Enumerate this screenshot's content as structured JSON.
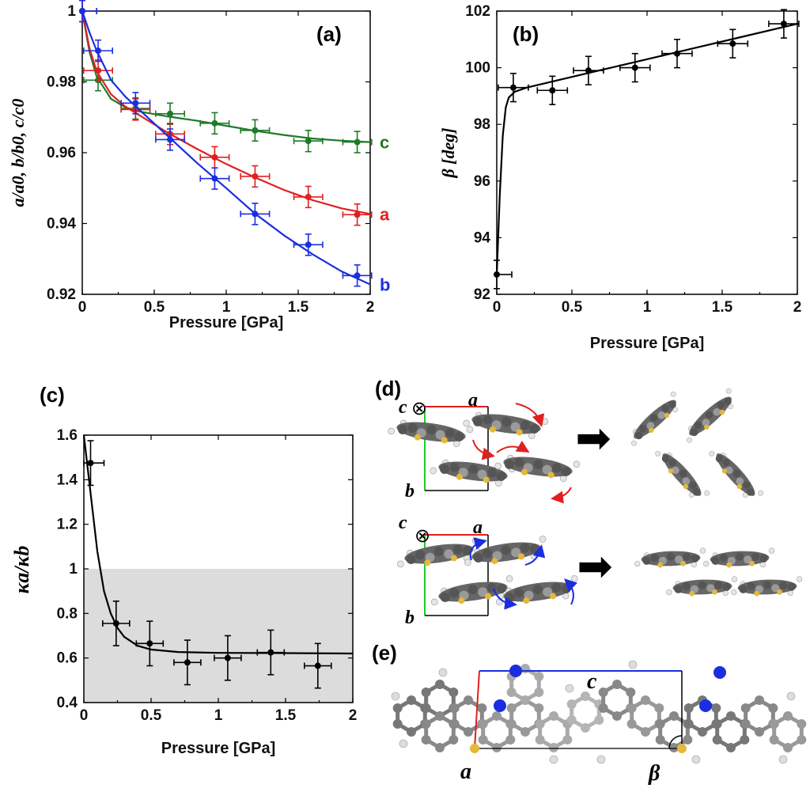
{
  "panels": {
    "a": "(a)",
    "b": "(b)",
    "c": "(c)",
    "d": "(d)",
    "e": "(e)"
  },
  "colors": {
    "a": "#e02020",
    "b": "#1a2ee0",
    "c": "#1f7a2a",
    "black": "#000000",
    "shade": "#dcdcdc"
  },
  "chart_data": [
    {
      "id": "a",
      "type": "line",
      "title": "(a)",
      "xlabel": "Pressure [GPa]",
      "ylabel": "a/a0, b/b0, c/c0",
      "xlim": [
        0,
        2
      ],
      "ylim": [
        0.92,
        1.0
      ],
      "xticks": [
        0,
        0.5,
        1,
        1.5,
        2
      ],
      "xtick_labels": [
        "0",
        "0.5",
        "1",
        "1.5",
        "2"
      ],
      "yticks": [
        0.92,
        0.94,
        0.96,
        0.98,
        1.0
      ],
      "ytick_labels": [
        "0.92",
        "0.94",
        "0.96",
        "0.98",
        "1"
      ],
      "series": [
        {
          "name": "c",
          "label": "c",
          "color": "#1f7a2a",
          "x": [
            0,
            0.11,
            0.37,
            0.61,
            0.92,
            1.2,
            1.57,
            1.91
          ],
          "y": [
            1.0,
            0.9805,
            0.9725,
            0.971,
            0.9683,
            0.9663,
            0.9633,
            0.963
          ],
          "xerr": 0.1,
          "yerr": 0.003,
          "fit_x": [
            0,
            0.05,
            0.1,
            0.2,
            0.3,
            0.4,
            0.6,
            0.8,
            1.0,
            1.2,
            1.4,
            1.6,
            1.8,
            2.0
          ],
          "fit_y": [
            1.0,
            0.9885,
            0.9815,
            0.9752,
            0.9728,
            0.9716,
            0.9702,
            0.969,
            0.9676,
            0.9662,
            0.965,
            0.964,
            0.9634,
            0.963
          ]
        },
        {
          "name": "a",
          "label": "a",
          "color": "#e02020",
          "x": [
            0,
            0.11,
            0.37,
            0.61,
            0.92,
            1.2,
            1.57,
            1.91
          ],
          "y": [
            1.0,
            0.9832,
            0.9722,
            0.9653,
            0.9587,
            0.9533,
            0.9475,
            0.9425
          ],
          "xerr": 0.1,
          "yerr": 0.003,
          "fit_x": [
            0,
            0.05,
            0.1,
            0.2,
            0.3,
            0.4,
            0.6,
            0.8,
            1.0,
            1.2,
            1.4,
            1.6,
            1.8,
            2.0
          ],
          "fit_y": [
            1.0,
            0.9895,
            0.983,
            0.9765,
            0.973,
            0.9705,
            0.9655,
            0.961,
            0.9568,
            0.953,
            0.9495,
            0.9466,
            0.9443,
            0.9427
          ]
        },
        {
          "name": "b",
          "label": "b",
          "color": "#1a2ee0",
          "x": [
            0,
            0.11,
            0.37,
            0.61,
            0.92,
            1.2,
            1.57,
            1.91
          ],
          "y": [
            1.0,
            0.9888,
            0.974,
            0.9637,
            0.9527,
            0.9427,
            0.934,
            0.9253
          ],
          "xerr": 0.1,
          "yerr": 0.003,
          "fit_x": [
            0,
            0.05,
            0.1,
            0.2,
            0.3,
            0.4,
            0.6,
            0.8,
            1.0,
            1.2,
            1.4,
            1.6,
            1.8,
            2.0
          ],
          "fit_y": [
            1.0,
            0.994,
            0.9888,
            0.9805,
            0.9758,
            0.972,
            0.9645,
            0.957,
            0.95,
            0.9428,
            0.9367,
            0.9313,
            0.9265,
            0.9228
          ]
        }
      ]
    },
    {
      "id": "b",
      "type": "line",
      "title": "(b)",
      "xlabel": "Pressure [GPa]",
      "ylabel": "β [deg]",
      "xlim": [
        0,
        2
      ],
      "ylim": [
        92,
        102
      ],
      "xticks": [
        0,
        0.5,
        1,
        1.5,
        2
      ],
      "xtick_labels": [
        "0",
        "0.5",
        "1",
        "1.5",
        "2"
      ],
      "yticks": [
        92,
        94,
        96,
        98,
        100,
        102
      ],
      "ytick_labels": [
        "92",
        "94",
        "96",
        "98",
        "100",
        "102"
      ],
      "series": [
        {
          "name": "beta",
          "color": "#000000",
          "x": [
            0,
            0.11,
            0.37,
            0.61,
            0.92,
            1.2,
            1.57,
            1.91
          ],
          "y": [
            92.7,
            99.3,
            99.2,
            99.9,
            100.0,
            100.5,
            100.85,
            101.55
          ],
          "xerr": 0.1,
          "yerr": 0.5,
          "fit_x": [
            0,
            0.02,
            0.04,
            0.06,
            0.08,
            0.12,
            0.2,
            0.4,
            0.8,
            1.2,
            1.6,
            2.0
          ],
          "fit_y": [
            92.7,
            95.5,
            97.6,
            98.6,
            98.95,
            99.15,
            99.3,
            99.55,
            100.05,
            100.55,
            101.05,
            101.55
          ]
        }
      ]
    },
    {
      "id": "c",
      "type": "line",
      "title": "(c)",
      "xlabel": "Pressure [GPa]",
      "ylabel": "κa/κb",
      "xlim": [
        0,
        2
      ],
      "ylim": [
        0.4,
        1.6
      ],
      "xticks": [
        0,
        0.5,
        1,
        1.5,
        2
      ],
      "xtick_labels": [
        "0",
        "0.5",
        "1",
        "1.5",
        "2"
      ],
      "yticks": [
        0.4,
        0.6,
        0.8,
        1.0,
        1.2,
        1.4,
        1.6
      ],
      "ytick_labels": [
        "0.4",
        "0.6",
        "0.8",
        "1",
        "1.2",
        "1.4",
        "1.6"
      ],
      "shaded_below": 1.0,
      "series": [
        {
          "name": "ratio",
          "color": "#000000",
          "x": [
            0.05,
            0.24,
            0.49,
            0.77,
            1.07,
            1.39,
            1.74
          ],
          "y": [
            1.475,
            0.755,
            0.665,
            0.58,
            0.6,
            0.625,
            0.565
          ],
          "xerr": 0.1,
          "yerr": 0.1,
          "fit_x": [
            0,
            0.05,
            0.1,
            0.15,
            0.2,
            0.25,
            0.3,
            0.4,
            0.5,
            0.7,
            1.0,
            1.5,
            2.0
          ],
          "fit_y": [
            1.6,
            1.34,
            1.08,
            0.9,
            0.8,
            0.735,
            0.695,
            0.655,
            0.638,
            0.627,
            0.623,
            0.622,
            0.62
          ]
        }
      ]
    }
  ],
  "diagram_d": {
    "rows": [
      {
        "axis_c": "c",
        "axis_a": "a",
        "axis_b": "b",
        "symbol": "⊗",
        "arrow": "➡"
      },
      {
        "axis_c": "c",
        "axis_a": "a",
        "axis_b": "b",
        "symbol": "⊗",
        "arrow": "➡"
      }
    ]
  },
  "diagram_e": {
    "axis_c": "c",
    "axis_a": "a",
    "angle": "β"
  }
}
